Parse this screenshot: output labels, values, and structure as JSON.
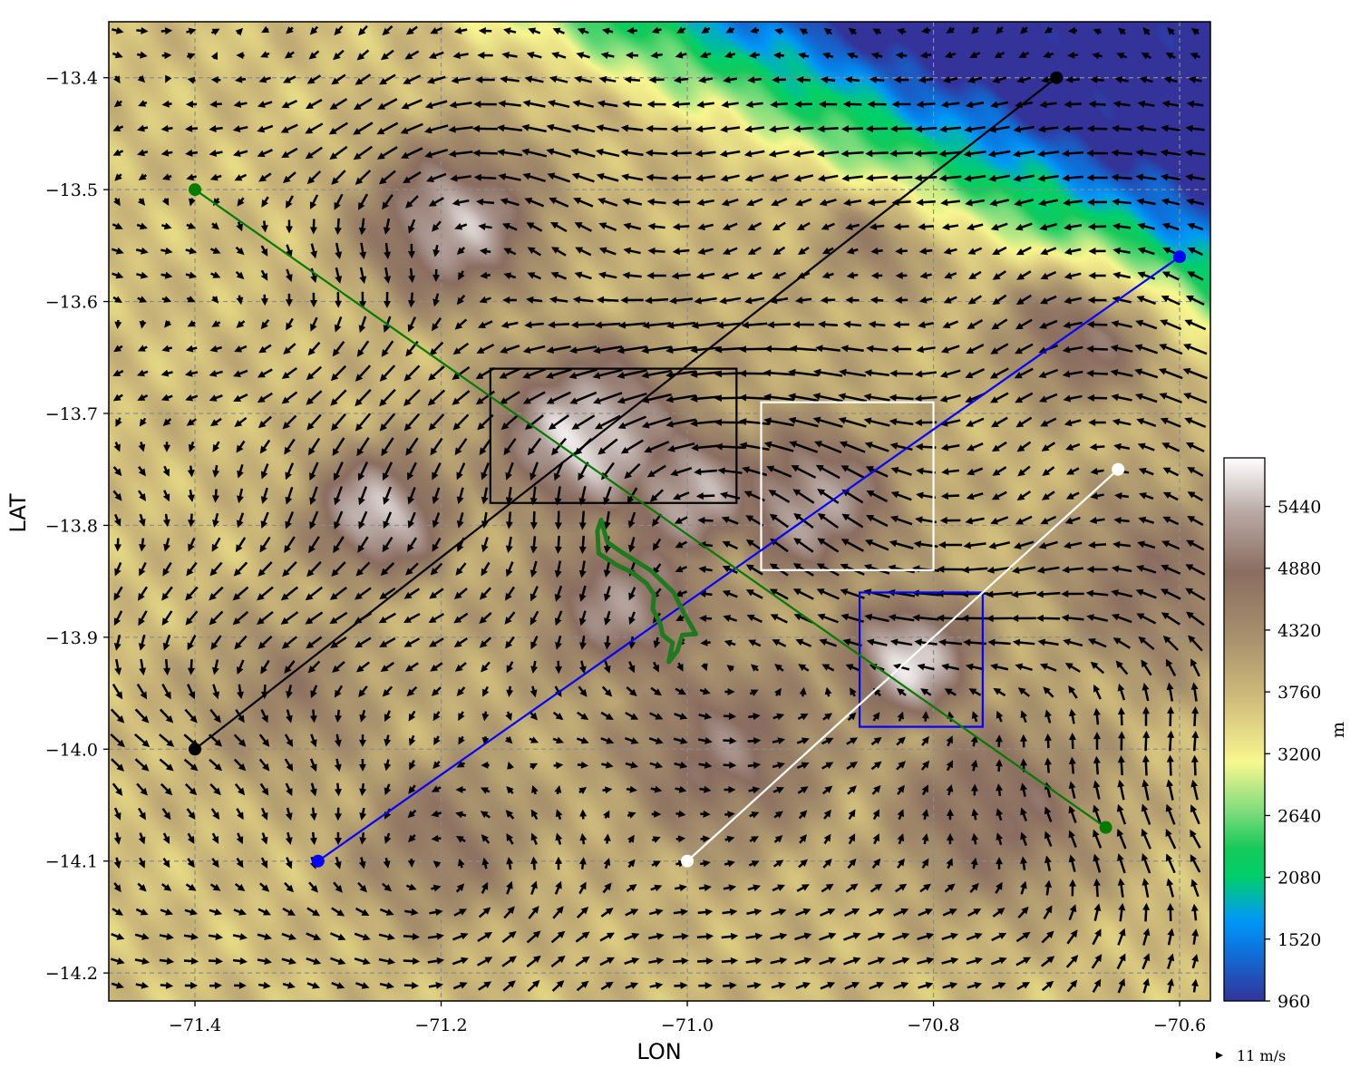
{
  "chart_data": {
    "type": "map",
    "xlabel": "LON",
    "ylabel": "LAT",
    "xlim": [
      -71.47,
      -70.575
    ],
    "ylim": [
      -14.225,
      -13.35
    ],
    "x_ticks": [
      {
        "value": -71.4,
        "label": "−71.4"
      },
      {
        "value": -71.2,
        "label": "−71.2"
      },
      {
        "value": -71.0,
        "label": "−71.0"
      },
      {
        "value": -70.8,
        "label": "−70.8"
      },
      {
        "value": -70.6,
        "label": "−70.6"
      }
    ],
    "y_ticks": [
      {
        "value": -13.4,
        "label": "−13.4"
      },
      {
        "value": -13.5,
        "label": "−13.5"
      },
      {
        "value": -13.6,
        "label": "−13.6"
      },
      {
        "value": -13.7,
        "label": "−13.7"
      },
      {
        "value": -13.8,
        "label": "−13.8"
      },
      {
        "value": -13.9,
        "label": "−13.9"
      },
      {
        "value": -14.0,
        "label": "−14.0"
      },
      {
        "value": -14.1,
        "label": "−14.1"
      },
      {
        "value": -14.2,
        "label": "−14.2"
      }
    ],
    "grid": true,
    "colorbar": {
      "unit_label": "m",
      "range": [
        960,
        5880
      ],
      "tick_values": [
        960,
        1520,
        2080,
        2640,
        3200,
        3760,
        4320,
        4880,
        5440
      ],
      "tick_labels": [
        "960",
        "1520",
        "2080",
        "2640",
        "3200",
        "3760",
        "4320",
        "4880",
        "5440"
      ],
      "colormap": "terrain"
    },
    "quiver_key": {
      "label": "11 m/s",
      "value": 11
    },
    "cross_sections": [
      {
        "color": "#000000",
        "start": [
          -71.4,
          -14.0
        ],
        "end": [
          -70.7,
          -13.4
        ]
      },
      {
        "color": "#0000ff",
        "start": [
          -71.3,
          -14.1
        ],
        "end": [
          -70.6,
          -13.56
        ]
      },
      {
        "color": "#ffffff",
        "start": [
          -71.0,
          -14.1
        ],
        "end": [
          -70.65,
          -13.75
        ]
      },
      {
        "color": "#007a00",
        "start": [
          -71.4,
          -13.5
        ],
        "end": [
          -70.66,
          -14.07
        ]
      }
    ],
    "boxes": [
      {
        "color": "#000000",
        "lon": [
          -71.16,
          -70.96
        ],
        "lat": [
          -13.78,
          -13.66
        ]
      },
      {
        "color": "#ffffff",
        "lon": [
          -70.94,
          -70.8
        ],
        "lat": [
          -13.84,
          -13.69
        ]
      },
      {
        "color": "#0000ff",
        "lon": [
          -70.86,
          -70.76
        ],
        "lat": [
          -13.98,
          -13.86
        ]
      }
    ],
    "glacier_outline": {
      "color": "#1f7a1f",
      "points": [
        [
          -71.07,
          -13.795
        ],
        [
          -71.073,
          -13.805
        ],
        [
          -71.072,
          -13.825
        ],
        [
          -71.058,
          -13.835
        ],
        [
          -71.045,
          -13.842
        ],
        [
          -71.033,
          -13.852
        ],
        [
          -71.027,
          -13.862
        ],
        [
          -71.028,
          -13.875
        ],
        [
          -71.022,
          -13.888
        ],
        [
          -71.02,
          -13.898
        ],
        [
          -71.012,
          -13.905
        ],
        [
          -71.015,
          -13.922
        ],
        [
          -71.008,
          -13.912
        ],
        [
          -71.004,
          -13.898
        ],
        [
          -70.993,
          -13.897
        ],
        [
          -71.003,
          -13.878
        ],
        [
          -71.011,
          -13.86
        ],
        [
          -71.03,
          -13.84
        ],
        [
          -71.052,
          -13.825
        ],
        [
          -71.065,
          -13.815
        ]
      ]
    },
    "terrain_features": [
      {
        "lon": -71.19,
        "lat": -13.53,
        "elev": 5450,
        "spread": 0.055
      },
      {
        "lon": -71.25,
        "lat": -13.79,
        "elev": 5550,
        "spread": 0.045
      },
      {
        "lon": -71.08,
        "lat": -13.72,
        "elev": 5700,
        "spread": 0.06
      },
      {
        "lon": -71.0,
        "lat": -13.77,
        "elev": 5450,
        "spread": 0.05
      },
      {
        "lon": -70.9,
        "lat": -13.78,
        "elev": 5350,
        "spread": 0.055
      },
      {
        "lon": -70.82,
        "lat": -13.92,
        "elev": 5650,
        "spread": 0.045
      },
      {
        "lon": -71.05,
        "lat": -13.87,
        "elev": 5150,
        "spread": 0.06
      },
      {
        "lon": -70.97,
        "lat": -14.0,
        "elev": 4950,
        "spread": 0.07
      },
      {
        "lon": -70.75,
        "lat": -14.05,
        "elev": 4850,
        "spread": 0.07
      },
      {
        "lon": -71.2,
        "lat": -14.08,
        "elev": 4650,
        "spread": 0.06
      },
      {
        "lon": -71.32,
        "lat": -13.95,
        "elev": 4500,
        "spread": 0.06
      },
      {
        "lon": -70.68,
        "lat": -13.63,
        "elev": 4900,
        "spread": 0.05
      },
      {
        "lon": -70.62,
        "lat": -13.85,
        "elev": 4700,
        "spread": 0.07
      },
      {
        "lon": -70.85,
        "lat": -13.55,
        "elev": 4400,
        "spread": 0.04
      }
    ]
  }
}
